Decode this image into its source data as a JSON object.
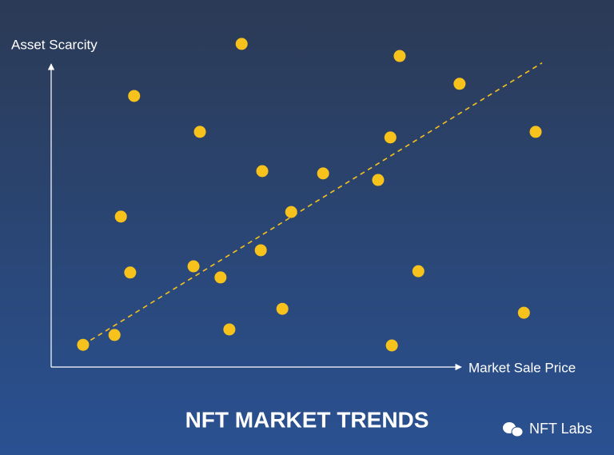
{
  "chart_data": {
    "type": "scatter",
    "title": "NFT MARKET TRENDS",
    "x_label": "Market Sale Price",
    "y_label": "Asset Scarcity",
    "watermark": "NFT Labs",
    "color": "#f7c21b",
    "xlim": [
      0,
      100
    ],
    "ylim": [
      0,
      100
    ],
    "x": [
      6.5,
      12.9,
      16.1,
      14.2,
      16.9,
      29.0,
      30.3,
      34.5,
      36.3,
      38.8,
      42.7,
      43.0,
      47.1,
      48.9,
      55.4,
      66.6,
      69.1,
      69.4,
      71.0,
      74.8,
      83.2,
      96.3,
      98.7
    ],
    "y": [
      6.8,
      9.8,
      28.9,
      46.0,
      82.9,
      30.8,
      71.9,
      27.4,
      11.5,
      98.8,
      35.7,
      59.9,
      17.8,
      47.4,
      59.2,
      57.2,
      70.2,
      6.6,
      95.1,
      29.3,
      86.6,
      16.6,
      71.9
    ],
    "trendline": {
      "color": "#f7c21b",
      "x": [
        6.5,
        100
      ],
      "y": [
        6.8,
        93.0
      ]
    }
  }
}
